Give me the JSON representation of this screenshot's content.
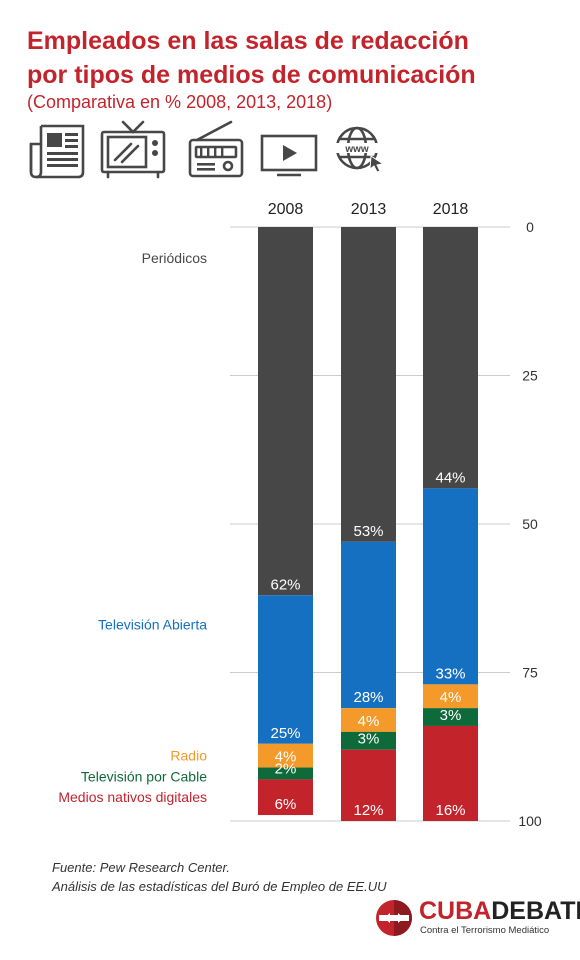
{
  "header": {
    "title_line1": "Empleados en las salas de redacción",
    "title_line2": "por tipos de medios de comunicación",
    "subtitle": "(Comparativa en % 2008, 2013, 2018)"
  },
  "icons": [
    "newspaper-icon",
    "television-icon",
    "radio-icon",
    "cable-tv-icon",
    "www-icon"
  ],
  "colors": {
    "title": "#c3242c",
    "periodicos": "#474747",
    "television_abierta": "#1670c2",
    "radio": "#f39a2b",
    "television_cable": "#0f6a3a",
    "digitales": "#c3242c",
    "grid": "#cccccc"
  },
  "chart_data": {
    "type": "bar",
    "stacked": true,
    "orientation": "vertical",
    "categories": [
      "2008",
      "2013",
      "2018"
    ],
    "series": [
      {
        "name": "Periódicos",
        "values": [
          62,
          53,
          44
        ],
        "labels": [
          "62%",
          "53%",
          "44%"
        ],
        "color": "#474747",
        "label_color": "#474747"
      },
      {
        "name": "Televisión Abierta",
        "values": [
          25,
          28,
          33
        ],
        "labels": [
          "25%",
          "28%",
          "33%"
        ],
        "color": "#1670c2",
        "label_color": "#1670c2"
      },
      {
        "name": "Radio",
        "values": [
          4,
          4,
          4
        ],
        "labels": [
          "4%",
          "4%",
          "4%"
        ],
        "color": "#f39a2b",
        "label_color": "#f39a2b"
      },
      {
        "name": "Televisión por Cable",
        "values": [
          2,
          3,
          3
        ],
        "labels": [
          "2%",
          "3%",
          "3%"
        ],
        "color": "#0f6a3a",
        "label_color": "#0f6a3a"
      },
      {
        "name": "Medios nativos digitales",
        "values": [
          6,
          12,
          16
        ],
        "labels": [
          "6%",
          "12%",
          "16%"
        ],
        "color": "#c3242c",
        "label_color": "#c3242c"
      }
    ],
    "y_axis": {
      "ticks": [
        0,
        25,
        50,
        75,
        100
      ],
      "position": "right",
      "inverted": true
    },
    "ylim": [
      0,
      100
    ],
    "grid": true,
    "legend": "inline-left"
  },
  "footer": {
    "source_line1": "Fuente: Pew Research Center.",
    "source_line2": "Análisis de las estadísticas del Buró de Empleo de EE.UU",
    "brand_cuba": "CUBA",
    "brand_debate": "DEBATE",
    "brand_tagline": "Contra el Terrorismo Mediático"
  }
}
